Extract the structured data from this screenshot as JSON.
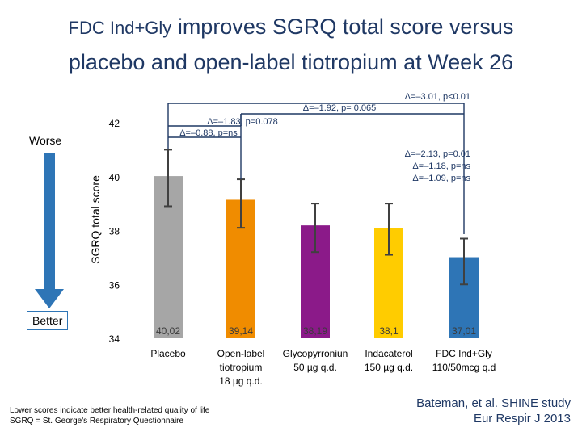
{
  "title": {
    "line1_prefix": "FDC Ind+Gly",
    "line1_rest": " improves SGRQ total score versus",
    "line2": "placebo and open-label tiotropium at Week 26"
  },
  "arrow": {
    "worse": "Worse",
    "better": "Better"
  },
  "colors": {
    "arrow": "#2e75b6",
    "placebo": "#a6a6a6",
    "tiotropium": "#f08c00",
    "glycopyrronium": "#8b1a89",
    "indacaterol": "#ffcc00",
    "fdc": "#2e75b6",
    "bracket": "#1f3864"
  },
  "footnote": {
    "line1": "Lower scores indicate better health-related quality of life",
    "line2": "SGRQ = St. George's Respiratory Questionnaire"
  },
  "citation": {
    "line1": "Bateman, et al. SHINE study",
    "line2": "Eur Respir J 2013"
  },
  "chart_data": {
    "type": "bar",
    "ylabel": "SGRQ total score",
    "ylim": [
      34,
      42
    ],
    "yticks": [
      "42",
      "40",
      "38",
      "36",
      "34"
    ],
    "categories": [
      [
        "Placebo"
      ],
      [
        "Open-label",
        "tiotropium",
        "18 µg q.d."
      ],
      [
        "Glycopyrroniun",
        "50 µg q.d."
      ],
      [
        "Indacaterol",
        "150 µg q.d."
      ],
      [
        "FDC Ind+Gly",
        "110/50mcg q.d"
      ]
    ],
    "values": [
      40.02,
      39.14,
      38.19,
      38.1,
      37.01
    ],
    "value_labels": [
      "40,02",
      "39,14",
      "38,19",
      "38,1",
      "37,01"
    ],
    "error_low": [
      38.9,
      38.1,
      37.2,
      37.1,
      36.0
    ],
    "error_high": [
      41.0,
      39.9,
      39.0,
      39.0,
      37.7
    ],
    "annotations": [
      "Δ=–3.01, p<0.01",
      "Δ=–1.92, p= 0.065",
      "Δ=–1.83, p=0.078",
      "Δ=–0.88, p=ns",
      "Δ=–2.13, p=0.01",
      "Δ=–1.18, p=ns",
      "Δ=–1.09, p=ns"
    ]
  }
}
